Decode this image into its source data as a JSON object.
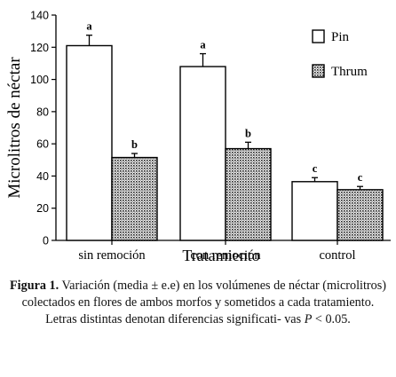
{
  "chart_data": {
    "type": "bar",
    "categories": [
      "sin remoción",
      "con remoción",
      "control"
    ],
    "series": [
      {
        "name": "Pin",
        "values": [
          121,
          108,
          36.5
        ],
        "errors": [
          6.5,
          8,
          2.5
        ],
        "letters": [
          "a",
          "a",
          "c"
        ],
        "fill": "#ffffff"
      },
      {
        "name": "Thrum",
        "values": [
          51.5,
          57,
          31.5
        ],
        "errors": [
          2.5,
          4,
          2
        ],
        "letters": [
          "b",
          "b",
          "c"
        ],
        "fill": "pattern"
      }
    ],
    "title": "",
    "xlabel": "Tratamiento",
    "ylabel": "Microlitros de néctar",
    "ylim": [
      0,
      140
    ],
    "yticks": [
      0,
      20,
      40,
      60,
      80,
      100,
      120,
      140
    ],
    "grid": false,
    "legend": "top-right"
  },
  "caption": {
    "label": "Figura 1.",
    "text_before_p": " Variación (media ± e.e) en los volúmenes de néctar (microlitros) colectados en flores de ambos morfos y sometidos a cada tratamiento. Letras distintas denotan diferencias significati- vas ",
    "p_symbol": "P",
    "text_after_p": " < 0.05."
  }
}
